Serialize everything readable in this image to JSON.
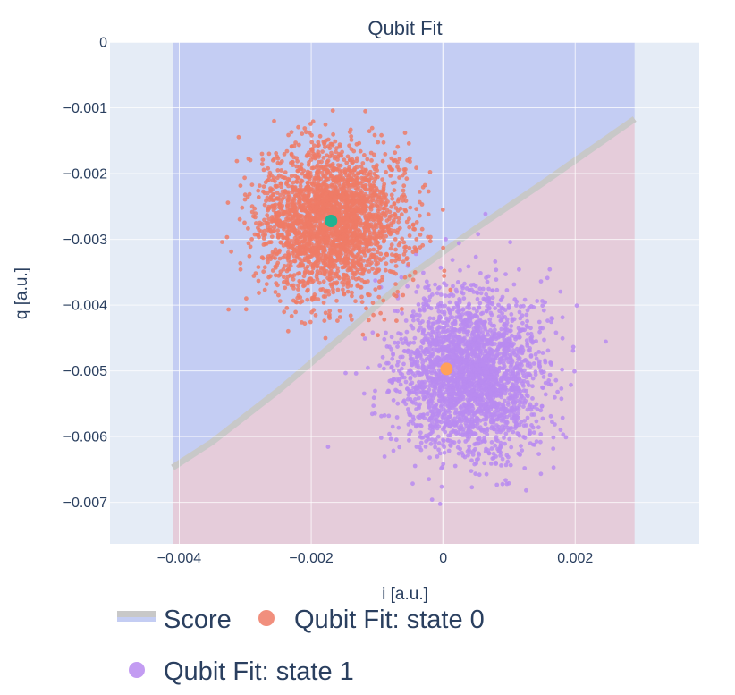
{
  "chart_data": {
    "type": "scatter",
    "title": "Qubit Fit",
    "xlabel": "i [a.u.]",
    "ylabel": "q [a.u.]",
    "xlim": [
      -0.00505,
      0.00388
    ],
    "ylim": [
      -0.00763,
      0
    ],
    "xticks": [
      -0.004,
      -0.002,
      0,
      0.002
    ],
    "xtick_labels": [
      "−0.004",
      "−0.002",
      "0",
      "0.002"
    ],
    "yticks": [
      0,
      -0.001,
      -0.002,
      -0.003,
      -0.004,
      -0.005,
      -0.006,
      -0.007
    ],
    "ytick_labels": [
      "0",
      "−0.001",
      "−0.002",
      "−0.003",
      "−0.004",
      "−0.005",
      "−0.006",
      "−0.007"
    ],
    "grid": true,
    "legend_position": "bottom",
    "colors": {
      "plot_bg": "#e5ecf6",
      "region_state0": "#c4cdf3",
      "region_state1": "#e5ccda",
      "boundary": "#c8c8c8",
      "state0": "#ef7b66",
      "state1": "#b98bf0",
      "center0": "#1fb392",
      "center1": "#ffa15a"
    },
    "score_region": {
      "x_range": [
        -0.0041,
        0.0029
      ],
      "boundary": [
        [
          -0.0041,
          -0.00647
        ],
        [
          -0.0035,
          -0.00608
        ],
        [
          -0.0025,
          -0.0053
        ],
        [
          -0.0015,
          -0.00445
        ],
        [
          -0.0005,
          -0.00355
        ],
        [
          0.0005,
          -0.00283
        ],
        [
          0.0015,
          -0.00215
        ],
        [
          0.0029,
          -0.00117
        ]
      ]
    },
    "series": [
      {
        "name": "Qubit Fit: state 0",
        "center": [
          -0.0017,
          -0.00272
        ],
        "spread": [
          0.00055,
          0.00055
        ],
        "n_points": 2600,
        "seed": 7
      },
      {
        "name": "Qubit Fit: state 1",
        "center": [
          0.0004,
          -0.00505
        ],
        "spread": [
          0.00055,
          0.0006
        ],
        "n_points": 2600,
        "seed": 13
      }
    ],
    "fit_centers": [
      {
        "name": "state 0 center",
        "x": -0.0017,
        "y": -0.00272
      },
      {
        "name": "state 1 center",
        "x": 5e-05,
        "y": -0.00497
      }
    ],
    "legend": [
      {
        "label": "Score",
        "kind": "band"
      },
      {
        "label": "Qubit Fit: state 0",
        "kind": "marker"
      },
      {
        "label": "Qubit Fit: state 1",
        "kind": "marker"
      }
    ]
  }
}
